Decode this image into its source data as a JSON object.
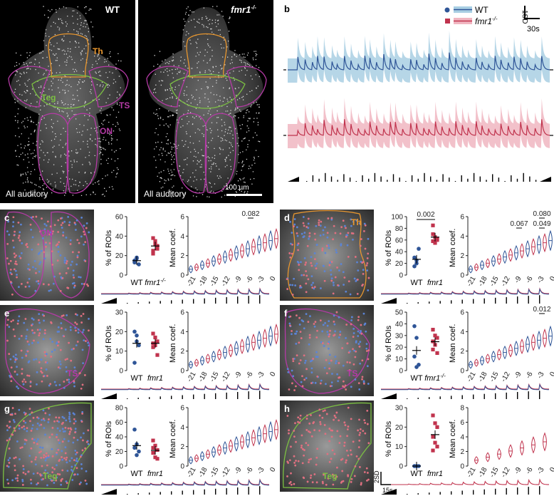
{
  "panel_letters": {
    "a": "a",
    "b": "b",
    "c": "c",
    "d": "d",
    "e": "e",
    "f": "f",
    "g": "g",
    "h": "h"
  },
  "panel_a": {
    "left_genotype": "WT",
    "right_genotype": "fmr1",
    "ko_superscript": "-/-",
    "caption_left": "All auditory",
    "caption_right": "All auditory",
    "scale_bar": "100 µm",
    "regions": [
      "Th",
      "Teg",
      "TS",
      "ON"
    ]
  },
  "panel_b": {
    "legend_wt": "WT",
    "legend_ko": "fmr1",
    "legend_ko_sup": "-/-",
    "scale_y": "1SD",
    "scale_x": "30s"
  },
  "colors": {
    "wt": "#2f5597",
    "wt_band": "#a9cfe3",
    "ko": "#c0334d",
    "ko_band": "#f0b6c1",
    "th": "#e8962e",
    "teg": "#7cc142",
    "ts_on": "#b53aa6"
  },
  "common": {
    "ylabel_pct": "% of ROIs",
    "ylabel_coef": "Mean coef.",
    "x_wt": "WT",
    "x_ko": "fmr1",
    "x_ko_sup": "-/-",
    "coef_ticks": [
      "-21",
      "-18",
      "-15",
      "-12",
      "-9",
      "-6",
      "-3",
      "0"
    ],
    "scale_2sd": "2SD",
    "scale_15s": "15s"
  },
  "regions_rows": {
    "c": {
      "region": "ON",
      "pct_ticks": [
        "0",
        "20",
        "40",
        "60"
      ],
      "coef_ticks": [
        "0",
        "2",
        "4",
        "6"
      ],
      "pvals": [
        "0.082"
      ]
    },
    "d": {
      "region": "Th",
      "pct_ticks": [
        "0",
        "20",
        "40",
        "60",
        "80",
        "100"
      ],
      "coef_ticks": [
        "0",
        "2",
        "4",
        "6"
      ],
      "pvals": [
        "0.002",
        "0.067",
        "0.049",
        "0.080"
      ]
    },
    "e": {
      "region": "TS",
      "pct_ticks": [
        "0",
        "10",
        "20",
        "30"
      ],
      "coef_ticks": [
        "0",
        "2",
        "4",
        "6"
      ],
      "pvals": []
    },
    "f": {
      "region": "TS",
      "pct_ticks": [
        "0",
        "10",
        "20",
        "30",
        "40",
        "50"
      ],
      "coef_ticks": [
        "0",
        "2",
        "4",
        "6"
      ],
      "pvals": [
        "0.012"
      ]
    },
    "g": {
      "region": "Teg",
      "pct_ticks": [
        "0",
        "20",
        "40",
        "60",
        "80"
      ],
      "coef_ticks": [
        "0",
        "2",
        "4",
        "6"
      ],
      "pvals": []
    },
    "h": {
      "region": "Teg",
      "pct_ticks": [
        "0",
        "10",
        "20",
        "30"
      ],
      "coef_ticks": [
        "0",
        "2",
        "4",
        "6",
        "8"
      ],
      "pvals": []
    }
  },
  "chart_data": [
    {
      "panel": "c",
      "type": "scatter",
      "categories": [
        "WT",
        "fmr1-/-"
      ],
      "series": [
        {
          "name": "WT",
          "values": [
            13,
            17,
            11,
            15,
            18
          ]
        },
        {
          "name": "fmr1-/-",
          "values": [
            38,
            32,
            27,
            22,
            35,
            30,
            25
          ]
        }
      ],
      "ylim": [
        0,
        60
      ]
    },
    {
      "panel": "d",
      "type": "scatter",
      "categories": [
        "WT",
        "fmr1-/-"
      ],
      "series": [
        {
          "name": "WT",
          "values": [
            30,
            20,
            45,
            15,
            25
          ]
        },
        {
          "name": "fmr1-/-",
          "values": [
            85,
            65,
            60,
            70,
            55,
            62,
            58
          ]
        }
      ],
      "ylim": [
        0,
        100
      ]
    },
    {
      "panel": "e",
      "type": "scatter",
      "categories": [
        "WT",
        "fmr1-/-"
      ],
      "series": [
        {
          "name": "WT",
          "values": [
            20,
            15,
            13,
            4,
            18
          ]
        },
        {
          "name": "fmr1-/-",
          "values": [
            19,
            17,
            15,
            14,
            13,
            8,
            12
          ]
        }
      ],
      "ylim": [
        0,
        30
      ]
    },
    {
      "panel": "f",
      "type": "scatter",
      "categories": [
        "WT",
        "fmr1-/-"
      ],
      "series": [
        {
          "name": "WT",
          "values": [
            38,
            28,
            5,
            12,
            3
          ]
        },
        {
          "name": "fmr1-/-",
          "values": [
            35,
            30,
            28,
            25,
            22,
            15,
            18
          ]
        }
      ],
      "ylim": [
        0,
        50
      ]
    },
    {
      "panel": "g",
      "type": "scatter",
      "categories": [
        "WT",
        "fmr1-/-"
      ],
      "series": [
        {
          "name": "WT",
          "values": [
            50,
            30,
            20,
            25,
            15
          ]
        },
        {
          "name": "fmr1-/-",
          "values": [
            35,
            28,
            22,
            18,
            12,
            10,
            25
          ]
        }
      ],
      "ylim": [
        0,
        80
      ]
    },
    {
      "panel": "h",
      "type": "scatter",
      "categories": [
        "WT",
        "fmr1-/-"
      ],
      "series": [
        {
          "name": "WT",
          "values": [
            0,
            0,
            0,
            0,
            0
          ]
        },
        {
          "name": "fmr1-/-",
          "values": [
            26,
            22,
            20,
            15,
            12,
            10,
            8
          ]
        }
      ],
      "ylim": [
        0,
        30
      ]
    }
  ]
}
